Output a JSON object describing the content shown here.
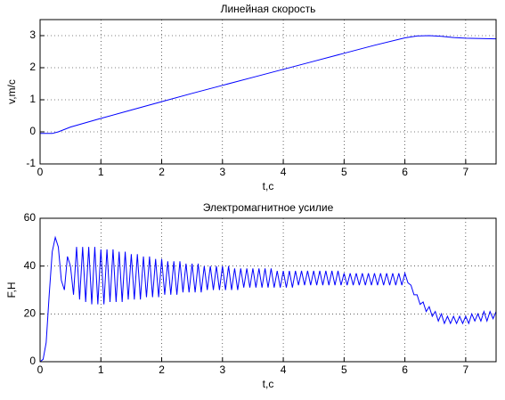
{
  "chart_data": [
    {
      "type": "line",
      "title": "Линейная скорость",
      "xlabel": "t,c",
      "ylabel": "v,m/c",
      "xlim": [
        0,
        7.5
      ],
      "xticks": [
        0,
        1,
        2,
        3,
        4,
        5,
        6,
        7
      ],
      "ylim": [
        -1,
        3.5
      ],
      "yticks": [
        -1,
        0,
        1,
        2,
        3
      ],
      "grid": true,
      "x": [
        0,
        0.2,
        0.3,
        0.5,
        1,
        1.5,
        2,
        2.5,
        3,
        3.5,
        4,
        4.5,
        5,
        5.5,
        6,
        6.2,
        6.4,
        6.6,
        6.8,
        7,
        7.5
      ],
      "series": [
        {
          "color": "#0000ff",
          "values": [
            -0.05,
            -0.05,
            0,
            0.15,
            0.42,
            0.68,
            0.94,
            1.2,
            1.45,
            1.7,
            1.95,
            2.2,
            2.45,
            2.7,
            2.93,
            2.99,
            3.0,
            2.98,
            2.94,
            2.92,
            2.9
          ]
        }
      ]
    },
    {
      "type": "line",
      "title": "Электромагнитное усилие",
      "xlabel": "t,c",
      "ylabel": "F,H",
      "xlim": [
        0,
        7.5
      ],
      "xticks": [
        0,
        1,
        2,
        3,
        4,
        5,
        6,
        7
      ],
      "ylim": [
        0,
        60
      ],
      "yticks": [
        0,
        20,
        40,
        60
      ],
      "grid": true,
      "x": [
        0,
        0.05,
        0.1,
        0.15,
        0.2,
        0.25,
        0.3,
        0.35,
        0.4,
        0.45,
        0.5,
        0.55,
        0.6,
        0.65,
        0.7,
        0.75,
        0.8,
        0.85,
        0.9,
        0.95,
        1.0,
        1.05,
        1.1,
        1.15,
        1.2,
        1.25,
        1.3,
        1.35,
        1.4,
        1.45,
        1.5,
        1.55,
        1.6,
        1.65,
        1.7,
        1.75,
        1.8,
        1.85,
        1.9,
        1.95,
        2.0,
        2.05,
        2.1,
        2.15,
        2.2,
        2.25,
        2.3,
        2.35,
        2.4,
        2.45,
        2.5,
        2.55,
        2.6,
        2.65,
        2.7,
        2.75,
        2.8,
        2.85,
        2.9,
        2.95,
        3.0,
        3.05,
        3.1,
        3.15,
        3.2,
        3.25,
        3.3,
        3.35,
        3.4,
        3.45,
        3.5,
        3.55,
        3.6,
        3.65,
        3.7,
        3.75,
        3.8,
        3.85,
        3.9,
        3.95,
        4.0,
        4.05,
        4.1,
        4.15,
        4.2,
        4.25,
        4.3,
        4.35,
        4.4,
        4.45,
        4.5,
        4.55,
        4.6,
        4.65,
        4.7,
        4.75,
        4.8,
        4.85,
        4.9,
        4.95,
        5.0,
        5.05,
        5.1,
        5.15,
        5.2,
        5.25,
        5.3,
        5.35,
        5.4,
        5.45,
        5.5,
        5.55,
        5.6,
        5.65,
        5.7,
        5.75,
        5.8,
        5.85,
        5.9,
        5.95,
        6.0,
        6.05,
        6.1,
        6.15,
        6.2,
        6.25,
        6.3,
        6.35,
        6.4,
        6.45,
        6.5,
        6.55,
        6.6,
        6.65,
        6.7,
        6.75,
        6.8,
        6.85,
        6.9,
        6.95,
        7.0,
        7.05,
        7.1,
        7.15,
        7.2,
        7.25,
        7.3,
        7.35,
        7.4,
        7.45,
        7.5
      ],
      "series": [
        {
          "color": "#0000ff",
          "values": [
            0,
            1,
            8,
            28,
            46,
            52,
            48,
            34,
            30,
            44,
            40,
            28,
            48,
            26,
            48,
            25,
            48,
            24,
            48,
            24,
            47,
            24,
            47,
            25,
            47,
            25,
            46,
            25,
            46,
            26,
            45,
            26,
            45,
            26,
            44,
            27,
            44,
            27,
            43,
            27,
            43,
            28,
            42,
            28,
            42,
            28,
            42,
            29,
            41,
            29,
            41,
            29,
            41,
            29,
            40,
            30,
            40,
            30,
            40,
            30,
            40,
            30,
            40,
            30,
            39,
            30,
            39,
            31,
            39,
            31,
            39,
            31,
            39,
            31,
            39,
            31,
            39,
            31,
            38,
            31,
            38,
            31,
            38,
            31,
            38,
            32,
            38,
            32,
            38,
            32,
            38,
            32,
            38,
            32,
            38,
            32,
            38,
            32,
            38,
            32,
            37,
            32,
            37,
            32,
            37,
            32,
            37,
            32,
            37,
            32,
            37,
            32,
            37,
            32,
            37,
            32,
            37,
            32,
            37,
            32,
            37,
            33,
            32,
            28,
            28,
            24,
            25,
            21,
            23,
            19,
            21,
            17,
            20,
            16,
            19,
            16,
            19,
            16,
            19,
            16,
            19,
            16,
            20,
            17,
            20,
            17,
            21,
            17,
            21,
            18,
            21
          ]
        }
      ]
    }
  ]
}
